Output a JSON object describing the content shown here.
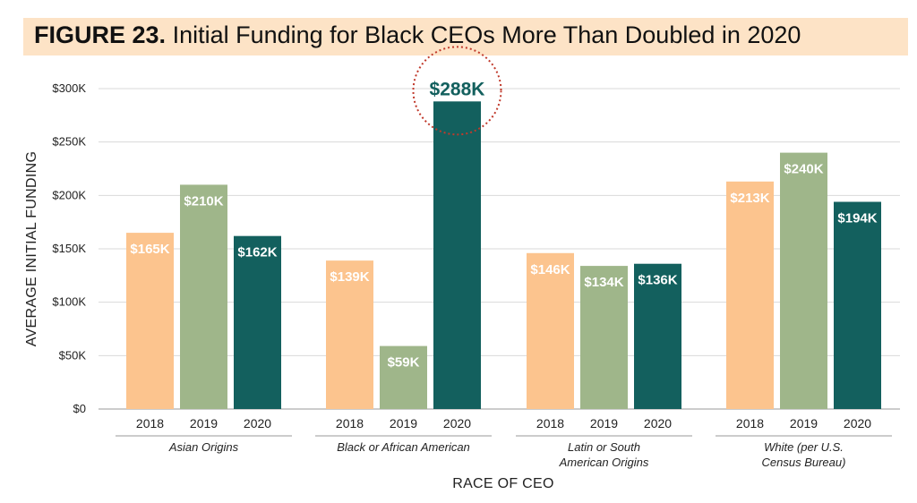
{
  "title": {
    "figure": "FIGURE 23.",
    "text": "Initial Funding for Black CEOs More Than Doubled in 2020"
  },
  "chart_data": {
    "type": "bar",
    "xlabel": "RACE OF CEO",
    "ylabel": "AVERAGE INITIAL FUNDING",
    "ylim": [
      0,
      300000
    ],
    "yticks": [
      0,
      50000,
      100000,
      150000,
      200000,
      250000,
      300000
    ],
    "ytick_labels": [
      "$0",
      "$50K",
      "$100K",
      "$150K",
      "$200K",
      "$250K",
      "$300K"
    ],
    "grid": true,
    "groups": [
      {
        "label": [
          "Asian Origins"
        ],
        "bars": [
          {
            "year": "2018",
            "value": 165000,
            "label": "$165K"
          },
          {
            "year": "2019",
            "value": 210000,
            "label": "$210K"
          },
          {
            "year": "2020",
            "value": 162000,
            "label": "$162K"
          }
        ]
      },
      {
        "label": [
          "Black or African American"
        ],
        "bars": [
          {
            "year": "2018",
            "value": 139000,
            "label": "$139K"
          },
          {
            "year": "2019",
            "value": 59000,
            "label": "$59K"
          },
          {
            "year": "2020",
            "value": 288000,
            "label": "$288K",
            "highlight": true
          }
        ]
      },
      {
        "label": [
          "Latin or South",
          "American Origins"
        ],
        "bars": [
          {
            "year": "2018",
            "value": 146000,
            "label": "$146K"
          },
          {
            "year": "2019",
            "value": 134000,
            "label": "$134K"
          },
          {
            "year": "2020",
            "value": 136000,
            "label": "$136K"
          }
        ]
      },
      {
        "label": [
          "White (per U.S.",
          "Census Bureau)"
        ],
        "bars": [
          {
            "year": "2018",
            "value": 213000,
            "label": "$213K"
          },
          {
            "year": "2019",
            "value": 240000,
            "label": "$240K"
          },
          {
            "year": "2020",
            "value": 194000,
            "label": "$194K"
          }
        ]
      }
    ],
    "colors": {
      "2018": "#fcc48e",
      "2019": "#9fb68a",
      "2020": "#13605e",
      "highlight_circle": "#c0392b"
    }
  }
}
